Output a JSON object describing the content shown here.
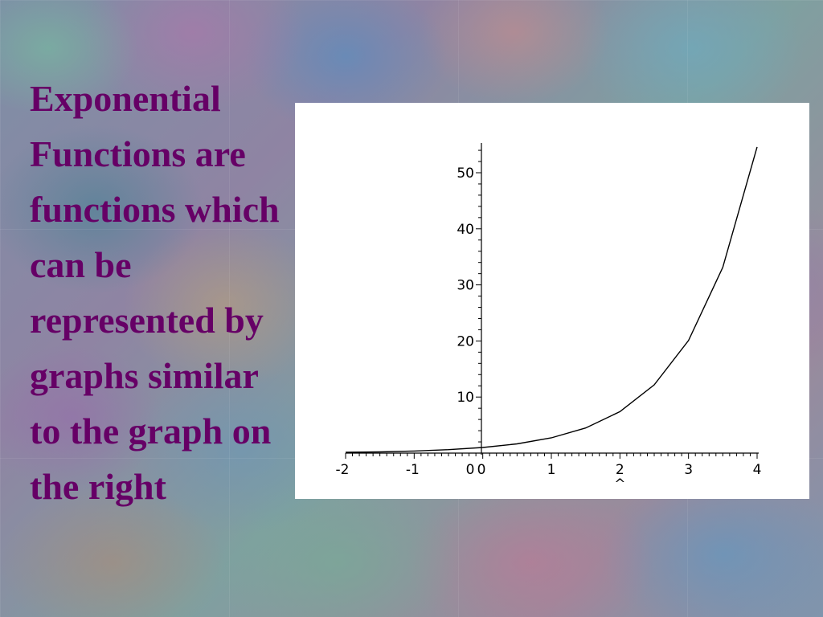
{
  "slide": {
    "text_lines": [
      "Exponential",
      "Functions are",
      "functions which",
      "can be",
      "represented by",
      "graphs similar",
      "to the graph on",
      "the right"
    ],
    "text_color": "#660066"
  },
  "chart_data": {
    "type": "line",
    "title": "",
    "xlabel": "",
    "ylabel": "",
    "xlim": [
      -2,
      4
    ],
    "ylim": [
      0,
      55
    ],
    "x_ticks": [
      "-2",
      "-1",
      "0",
      "0",
      "1",
      "2",
      "3",
      "4"
    ],
    "y_ticks": [
      "10",
      "20",
      "30",
      "40",
      "50"
    ],
    "x_caret": "^",
    "grid": false,
    "series": [
      {
        "x": [
          -2,
          -1.5,
          -1,
          -0.5,
          0,
          0.5,
          1,
          1.5,
          2,
          2.5,
          3,
          3.5,
          4
        ],
        "y": [
          0.14,
          0.22,
          0.37,
          0.61,
          1.0,
          1.65,
          2.72,
          4.48,
          7.39,
          12.18,
          20.09,
          33.12,
          54.6
        ]
      }
    ],
    "line_color": "#000000"
  }
}
